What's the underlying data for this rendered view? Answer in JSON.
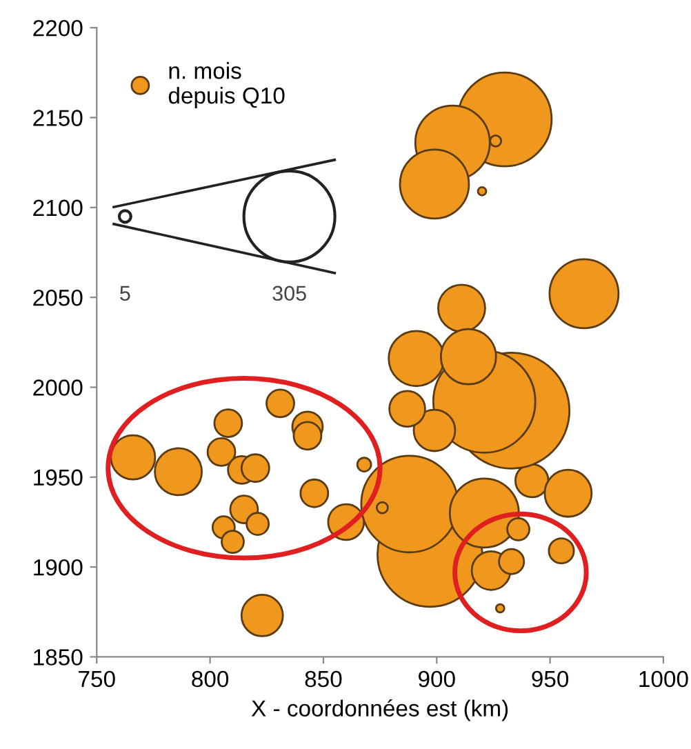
{
  "chart_data": {
    "type": "bubble",
    "xlabel": "X - coordonnées est (km)",
    "xlim": [
      750,
      1000
    ],
    "xticks": [
      750,
      800,
      850,
      900,
      950,
      1000
    ],
    "ylim": [
      1850,
      2200
    ],
    "yticks": [
      1850,
      1900,
      1950,
      2000,
      2050,
      2100,
      2150,
      2200
    ],
    "grid": false,
    "legend": "top left",
    "size_legend": [
      5,
      305
    ],
    "series": [
      {
        "name": "n. mois\ndepuis Q10",
        "color": "#f0981e",
        "x": [
          766,
          786,
          808,
          805,
          814,
          820,
          831,
          843,
          843,
          815,
          806,
          821,
          810,
          846,
          860,
          823,
          868,
          897,
          888,
          921,
          924,
          936,
          933,
          928,
          955,
          942,
          958,
          933,
          921,
          899,
          887,
          930,
          907,
          899,
          926,
          920,
          965,
          911,
          891,
          914,
          876
        ],
        "values": [
          1961,
          1953,
          1980,
          1964,
          1954,
          1955,
          1991,
          1978,
          1973,
          1932,
          1922,
          1924,
          1914,
          1941,
          1925,
          1873,
          1957,
          1907,
          1935,
          1930,
          1898,
          1921,
          1903,
          1877,
          1909,
          1948,
          1941,
          1987,
          1992,
          1976,
          1988,
          2149,
          2136,
          2113,
          2137,
          2109,
          2052,
          2044,
          2016,
          2017,
          1933
        ],
        "sizes": [
          72,
          81,
          28,
          28,
          28,
          28,
          28,
          34,
          28,
          28,
          18,
          18,
          18,
          28,
          47,
          63,
          7,
          404,
          343,
          175,
          55,
          18,
          23,
          2.5,
          23,
          40,
          81,
          494,
          383,
          63,
          47,
          324,
          204,
          175,
          4.5,
          2.5,
          175,
          81,
          112,
          112,
          4.5
        ]
      }
    ]
  }
}
